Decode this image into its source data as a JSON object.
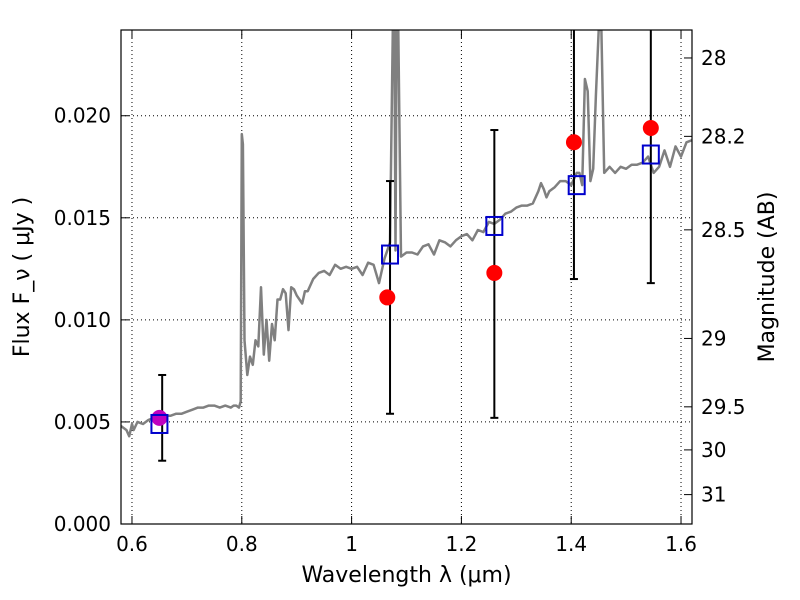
{
  "chart_data": {
    "type": "scatter",
    "title": "",
    "xlabel": "Wavelength  λ (μm)",
    "ylabel": "Flux  F_ν  ( μJy )",
    "ylabel_right": "Magnitude (AB)",
    "xlim": [
      0.58,
      1.62
    ],
    "ylim": [
      0.0,
      0.0242
    ],
    "x_ticks": [
      0.6,
      0.8,
      1.0,
      1.2,
      1.4,
      1.6
    ],
    "x_tick_labels": [
      "0.6",
      "0.8",
      "1",
      "1.2",
      "1.4",
      "1.6"
    ],
    "y_ticks": [
      0.0,
      0.005,
      0.01,
      0.015,
      0.02
    ],
    "y_tick_labels": [
      "0.000",
      "0.005",
      "0.010",
      "0.015",
      "0.020"
    ],
    "right_ticks": [
      {
        "label": "28",
        "flux": 0.02283
      },
      {
        "label": "28.2",
        "flux": 0.01899
      },
      {
        "label": "28.5",
        "flux": 0.01441
      },
      {
        "label": "29",
        "flux": 0.00909
      },
      {
        "label": "29.5",
        "flux": 0.00574
      },
      {
        "label": "30",
        "flux": 0.00363
      },
      {
        "label": "31",
        "flux": 0.00144
      }
    ],
    "grid": true,
    "model_spectrum": {
      "color": "#808080",
      "x": [
        0.58,
        0.59,
        0.595,
        0.6,
        0.603,
        0.61,
        0.62,
        0.63,
        0.64,
        0.65,
        0.66,
        0.67,
        0.68,
        0.69,
        0.7,
        0.71,
        0.72,
        0.73,
        0.74,
        0.75,
        0.76,
        0.77,
        0.78,
        0.785,
        0.79,
        0.795,
        0.798,
        0.8,
        0.802,
        0.805,
        0.81,
        0.815,
        0.82,
        0.825,
        0.83,
        0.835,
        0.84,
        0.845,
        0.85,
        0.855,
        0.86,
        0.865,
        0.87,
        0.875,
        0.88,
        0.885,
        0.89,
        0.895,
        0.9,
        0.91,
        0.915,
        0.92,
        0.93,
        0.94,
        0.95,
        0.96,
        0.97,
        0.98,
        0.99,
        1.0,
        1.01,
        1.02,
        1.03,
        1.04,
        1.05,
        1.06,
        1.065,
        1.07,
        1.075,
        1.078,
        1.08,
        1.082,
        1.085,
        1.09,
        1.1,
        1.11,
        1.12,
        1.13,
        1.14,
        1.15,
        1.16,
        1.17,
        1.18,
        1.19,
        1.2,
        1.21,
        1.22,
        1.23,
        1.24,
        1.25,
        1.26,
        1.27,
        1.28,
        1.29,
        1.3,
        1.31,
        1.32,
        1.33,
        1.34,
        1.345,
        1.35,
        1.355,
        1.36,
        1.37,
        1.38,
        1.39,
        1.4,
        1.41,
        1.415,
        1.42,
        1.425,
        1.43,
        1.435,
        1.44,
        1.445,
        1.45,
        1.455,
        1.46,
        1.47,
        1.48,
        1.49,
        1.5,
        1.51,
        1.52,
        1.53,
        1.54,
        1.55,
        1.56,
        1.57,
        1.58,
        1.59,
        1.6,
        1.61,
        1.62
      ],
      "y": [
        0.0048,
        0.0046,
        0.0043,
        0.0049,
        0.0046,
        0.005,
        0.0049,
        0.0051,
        0.0052,
        0.0052,
        0.0053,
        0.0053,
        0.0054,
        0.0054,
        0.0055,
        0.0056,
        0.0057,
        0.0057,
        0.0058,
        0.0058,
        0.0057,
        0.0058,
        0.0057,
        0.0058,
        0.0058,
        0.0057,
        0.006,
        0.0191,
        0.0186,
        0.009,
        0.0073,
        0.0082,
        0.0078,
        0.009,
        0.0087,
        0.0116,
        0.0083,
        0.01,
        0.008,
        0.0098,
        0.009,
        0.011,
        0.011,
        0.0115,
        0.0113,
        0.0095,
        0.0116,
        0.0115,
        0.0112,
        0.0108,
        0.0114,
        0.0114,
        0.012,
        0.0123,
        0.0124,
        0.0122,
        0.0127,
        0.0125,
        0.0126,
        0.0125,
        0.0126,
        0.0122,
        0.0128,
        0.0127,
        0.0118,
        0.013,
        0.0134,
        0.0138,
        0.0242,
        0.0242,
        0.0134,
        0.0242,
        0.0242,
        0.0131,
        0.0133,
        0.0133,
        0.0132,
        0.0136,
        0.0137,
        0.0132,
        0.0139,
        0.0138,
        0.0136,
        0.0139,
        0.0141,
        0.0142,
        0.0139,
        0.0144,
        0.0143,
        0.0148,
        0.0147,
        0.0149,
        0.0152,
        0.0153,
        0.0155,
        0.0156,
        0.0156,
        0.0157,
        0.0163,
        0.0167,
        0.0164,
        0.016,
        0.0163,
        0.0165,
        0.0168,
        0.0168,
        0.0166,
        0.0172,
        0.0172,
        0.0166,
        0.0218,
        0.0212,
        0.0168,
        0.0174,
        0.021,
        0.0242,
        0.0242,
        0.0172,
        0.0175,
        0.0172,
        0.0175,
        0.0174,
        0.0176,
        0.0176,
        0.0177,
        0.018,
        0.0172,
        0.0175,
        0.0183,
        0.0175,
        0.0185,
        0.018,
        0.0187,
        0.0188
      ]
    },
    "series": [
      {
        "marker": "circle",
        "color": "#ff0000",
        "x": [
          1.065,
          1.26,
          1.405,
          1.545
        ],
        "y": [
          0.0111,
          0.0123,
          0.0187,
          0.0194
        ]
      },
      {
        "marker": "circle",
        "color": "#bf00bf",
        "x": [
          0.65
        ],
        "y": [
          0.0052
        ]
      },
      {
        "marker": "open-square",
        "color": "#0000cc",
        "x": [
          0.65,
          1.07,
          1.26,
          1.41,
          1.545
        ],
        "y": [
          0.0049,
          0.0132,
          0.0146,
          0.0166,
          0.0181
        ]
      }
    ],
    "error_bars": {
      "color": "#000000",
      "x": [
        0.655,
        1.07,
        1.26,
        1.405,
        1.545
      ],
      "ylow": [
        0.0031,
        0.0054,
        0.0052,
        0.012,
        0.0118
      ],
      "yhigh": [
        0.0073,
        0.0168,
        0.0193,
        0.0242,
        0.0242
      ]
    }
  }
}
